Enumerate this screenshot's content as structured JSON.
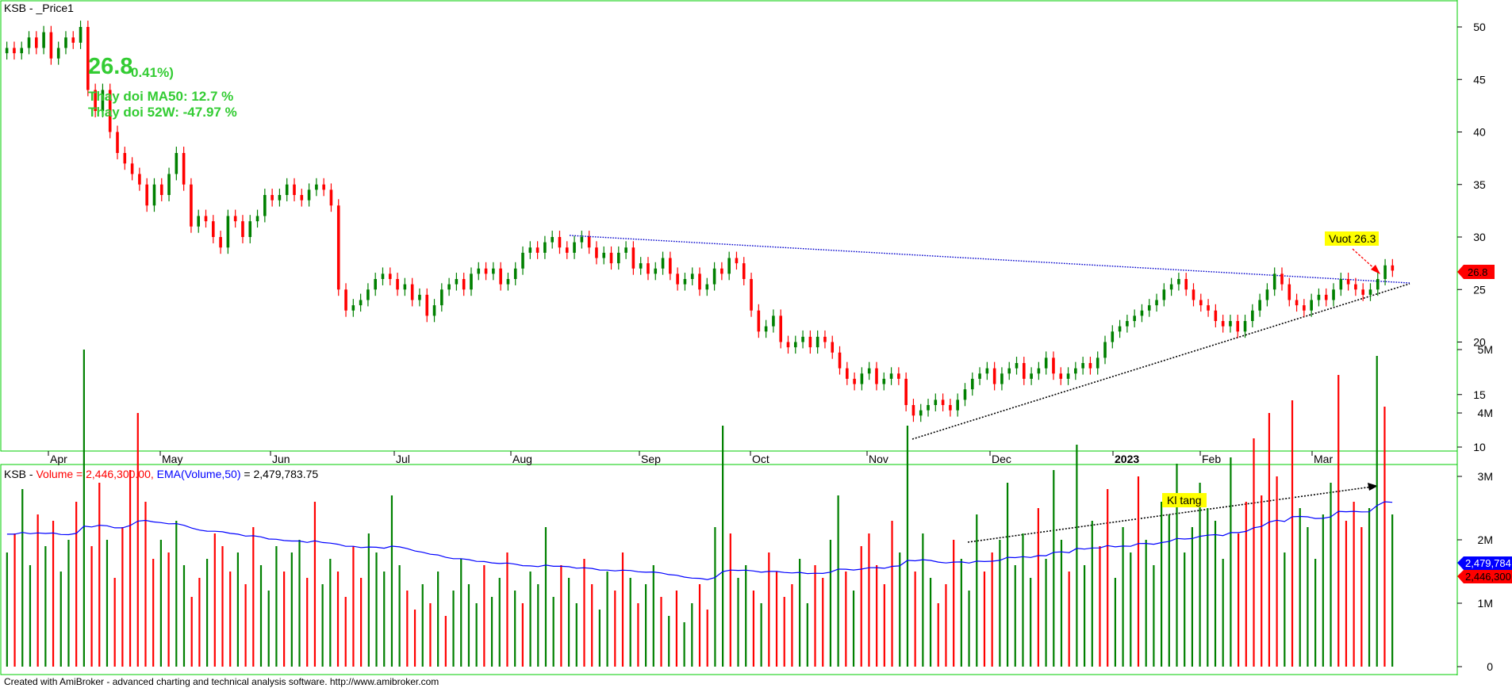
{
  "price_pane": {
    "title": "KSB - _Price1",
    "big_price": "26.8",
    "change": "0.41%)",
    "ma50_change": "Thay doi MA50: 12.7 %",
    "w52_change": "Thay doi 52W: -47.97 %",
    "last_price_badge": "26.8",
    "annotation": "Vuot 26.3"
  },
  "volume_pane": {
    "title": "KSB",
    "volume_label": "Volume = 2,446,300.00,",
    "ema_label": "EMA(Volume,50)",
    "ema_value": "= 2,479,783.75",
    "annotation": "Kl tang",
    "badge_ema": "2,479,784",
    "badge_volume": "2,446,300"
  },
  "footer": "Created with AmiBroker - advanced charting and technical analysis software. http://www.amibroker.com",
  "colors": {
    "up": "#008000",
    "down": "#ff0000",
    "ema": "#0000ff",
    "frame": "#00cc00",
    "annotation_bg": "#ffff00"
  },
  "chart_data": [
    {
      "type": "candlestick",
      "title": "KSB - _Price1",
      "x_tick_labels": [
        "Apr",
        "May",
        "Jun",
        "Jul",
        "Aug",
        "Sep",
        "Oct",
        "Nov",
        "Dec",
        "2023",
        "Feb",
        "Mar"
      ],
      "y_ticks": [
        10,
        15,
        20,
        25,
        30,
        35,
        40,
        45,
        50
      ],
      "ylim": [
        9,
        53
      ],
      "series_close": [
        48,
        47.5,
        48,
        49,
        48,
        49.5,
        47,
        48,
        49,
        48.5,
        50,
        44,
        42,
        44,
        40,
        38,
        37,
        36,
        35,
        33,
        35,
        34,
        36,
        38,
        35,
        31,
        32,
        31.5,
        30,
        29,
        32,
        31.5,
        30,
        31.5,
        32,
        34,
        33.5,
        34,
        35,
        34,
        33.5,
        34.5,
        35,
        34.5,
        33,
        25,
        23,
        23.5,
        24,
        25,
        26,
        26.5,
        26,
        25,
        25.5,
        24,
        24.5,
        22.5,
        23.5,
        25,
        25.5,
        26,
        25,
        26.5,
        27,
        26.5,
        27,
        25.5,
        26,
        27,
        28.5,
        29,
        28.5,
        29.5,
        30,
        29,
        28.5,
        29.5,
        30,
        29,
        28,
        28.5,
        27.5,
        28.5,
        29,
        27,
        27.5,
        26.5,
        27,
        28,
        26.5,
        25.5,
        26,
        26.5,
        25,
        25.5,
        27,
        26.5,
        28,
        27.5,
        26,
        23,
        21,
        21.5,
        22.5,
        20,
        19.5,
        20,
        20.5,
        19.5,
        20.5,
        20,
        19,
        17.5,
        16.5,
        16,
        17,
        17.5,
        16,
        16.5,
        17,
        16.5,
        14,
        13,
        13.5,
        14,
        14.5,
        14,
        13.5,
        14.5,
        15.5,
        16.5,
        17,
        17.5,
        16,
        17,
        17.5,
        18,
        16.5,
        17,
        17.5,
        18.5,
        17,
        16.5,
        17,
        17.5,
        18,
        17.5,
        18.5,
        20,
        21,
        21.5,
        22,
        22.5,
        23,
        23.5,
        24,
        25,
        25.5,
        26,
        25,
        24,
        23.5,
        23,
        22,
        21.5,
        22,
        21,
        22,
        23,
        24,
        25,
        26.5,
        25.5,
        24,
        23.5,
        23,
        24,
        24.5,
        24,
        25,
        26,
        25.5,
        25,
        24.5,
        25,
        26,
        27.3,
        26.8
      ],
      "annotations": [
        "Vuot 26.3"
      ]
    },
    {
      "type": "bar",
      "title": "Volume",
      "y_ticks": [
        "0",
        "1M",
        "2M",
        "3M",
        "4M",
        "5M"
      ],
      "ylim": [
        0,
        5200000
      ],
      "last_volume": 2446300,
      "last_ema50": 2479783.75,
      "series": [
        {
          "name": "Volume",
          "values": [
            1.8,
            2.1,
            2.8,
            1.6,
            2.4,
            1.9,
            2.3,
            1.5,
            2.0,
            2.6,
            5.0,
            1.9,
            2.9,
            2.0,
            1.4,
            2.2,
            3.1,
            4.0,
            2.6,
            1.7,
            2.0,
            1.8,
            2.3,
            1.6,
            1.1,
            1.4,
            1.7,
            2.1,
            1.9,
            1.5,
            1.8,
            1.3,
            2.2,
            1.6,
            1.2,
            1.9,
            1.5,
            1.8,
            2.0,
            1.4,
            2.6,
            1.3,
            1.7,
            1.5,
            1.1,
            1.9,
            1.4,
            2.1,
            1.8,
            1.5,
            2.7,
            1.6,
            1.2,
            0.9,
            1.3,
            1.0,
            1.5,
            0.8,
            1.2,
            1.7,
            1.3,
            1.0,
            1.6,
            1.1,
            1.4,
            1.8,
            1.2,
            1.0,
            1.5,
            1.3,
            2.2,
            1.1,
            1.6,
            1.4,
            1.0,
            1.7,
            1.3,
            0.9,
            1.5,
            1.2,
            1.8,
            1.4,
            1.0,
            1.3,
            1.6,
            1.1,
            0.8,
            1.2,
            0.7,
            1.0,
            1.3,
            0.9,
            2.2,
            3.8,
            2.1,
            1.4,
            1.6,
            1.2,
            1.0,
            1.8,
            1.5,
            1.1,
            1.3,
            1.7,
            1.0,
            1.6,
            1.4,
            2.0,
            2.7,
            1.5,
            1.2,
            1.9,
            2.1,
            1.6,
            1.3,
            2.3,
            1.8,
            3.8,
            1.5,
            2.1,
            1.4,
            1.0,
            1.3,
            2.0,
            1.7,
            1.2,
            2.4,
            1.5,
            1.8,
            2.0,
            2.9,
            1.6,
            2.1,
            1.4,
            2.5,
            1.7,
            3.1,
            2.0,
            1.5,
            3.5,
            1.6,
            2.3,
            1.9,
            2.8,
            1.4,
            2.2,
            1.8,
            3.0,
            2.0,
            1.6,
            2.6,
            2.4,
            3.2,
            1.8,
            2.2,
            2.9,
            2.5,
            2.3,
            1.7,
            3.3,
            2.1,
            2.6,
            3.6,
            2.7,
            4.0,
            3.0,
            1.8,
            4.2,
            2.5,
            2.2,
            1.7,
            2.4,
            2.9,
            4.6,
            2.3,
            2.6,
            2.2,
            2.5,
            4.9,
            4.1,
            2.4
          ]
        },
        {
          "name": "EMA(Volume,50)"
        }
      ],
      "annotations": [
        "Kl tang"
      ]
    }
  ]
}
